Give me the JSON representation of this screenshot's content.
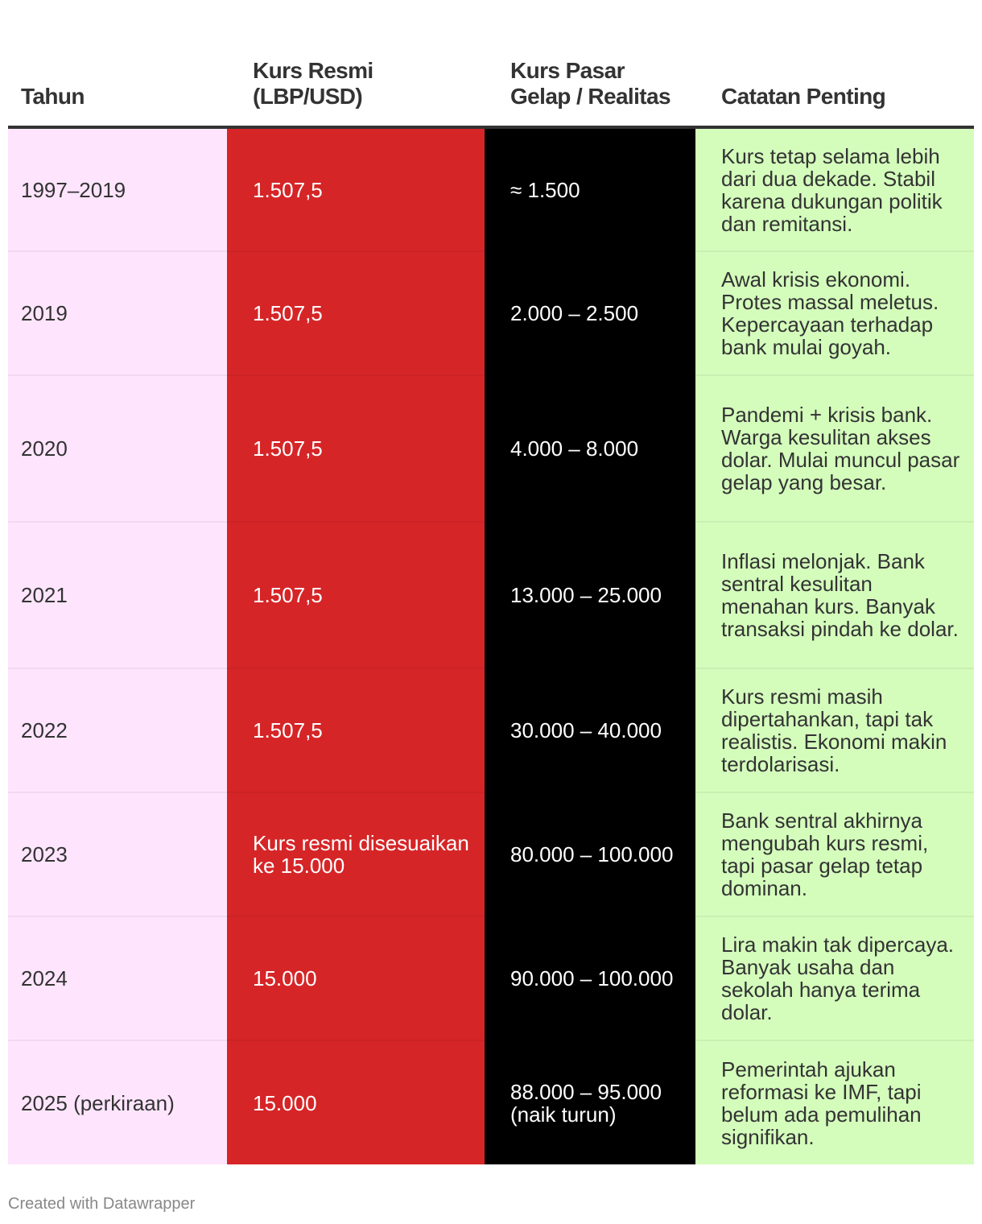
{
  "chart_data": {
    "type": "table",
    "columns": [
      "Tahun",
      "Kurs Resmi (LBP/USD)",
      "Kurs Pasar Gelap / Realitas",
      "Catatan Penting"
    ],
    "rows": [
      {
        "year": "1997–2019",
        "official": "1.507,5",
        "market": "≈ 1.500",
        "notes": "Kurs tetap selama lebih dari dua dekade. Stabil karena dukungan politik dan remitansi."
      },
      {
        "year": "2019",
        "official": "1.507,5",
        "market": "2.000 – 2.500",
        "notes": "Awal krisis ekonomi. Protes massal meletus. Kepercayaan terhadap bank mulai goyah."
      },
      {
        "year": "2020",
        "official": "1.507,5",
        "market": "4.000 – 8.000",
        "notes": "Pandemi + krisis bank. Warga kesulitan akses dolar. Mulai muncul pasar gelap yang besar."
      },
      {
        "year": "2021",
        "official": "1.507,5",
        "market": "13.000 – 25.000",
        "notes": "Inflasi melonjak. Bank sentral kesulitan menahan kurs. Banyak transaksi pindah ke dolar."
      },
      {
        "year": "2022",
        "official": "1.507,5",
        "market": "30.000 – 40.000",
        "notes": "Kurs resmi masih dipertahankan, tapi tak realistis. Ekonomi makin terdolarisasi."
      },
      {
        "year": "2023",
        "official": "Kurs resmi disesuaikan ke 15.000",
        "market": "80.000 – 100.000",
        "notes": "Bank sentral akhirnya mengubah kurs resmi, tapi pasar gelap tetap dominan."
      },
      {
        "year": "2024",
        "official": "15.000",
        "market": "90.000 – 100.000",
        "notes": "Lira makin tak dipercaya. Banyak usaha dan sekolah hanya terima dolar."
      },
      {
        "year": "2025 (perkiraan)",
        "official": "15.000",
        "market": "88.000 – 95.000 (naik turun)",
        "notes": "Pemerintah ajukan reformasi ke IMF, tapi belum ada pemulihan signifikan."
      }
    ],
    "column_colors": {
      "year": "#fee5fd",
      "official": "#d62527",
      "market": "#000000",
      "notes": "#d4fdbc"
    }
  },
  "footer": {
    "credit": "Created with Datawrapper"
  }
}
